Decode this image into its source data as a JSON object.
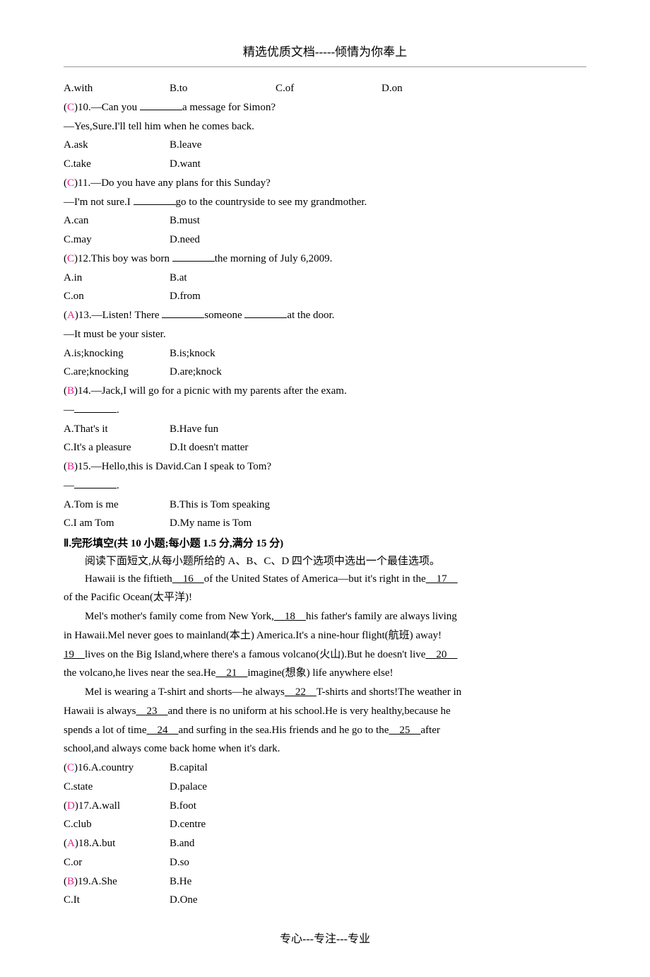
{
  "header": {
    "title": "精选优质文档-----倾情为你奉上"
  },
  "q9": {
    "a": "A.with",
    "b": "B.to",
    "c": "C.of",
    "d": "D.on"
  },
  "q10": {
    "answer": "C",
    "num": ")10.—Can you ",
    "text_after": "a message for Simon?",
    "line2": "—Yes,Sure.I'll tell him when he comes back.",
    "a": "A.ask",
    "b": "B.leave",
    "c": "C.take",
    "d": "D.want"
  },
  "q11": {
    "answer": "C",
    "num": ")11.—Do you have any plans for this Sunday?",
    "line2_before": "—I'm not sure.I ",
    "line2_after": "go to the countryside to see my grandmother.",
    "a": "A.can",
    "b": "B.must",
    "c": "C.may",
    "d": "D.need"
  },
  "q12": {
    "answer": "C",
    "num": ")12.This boy was born ",
    "text_after": "the morning of July 6,2009.",
    "a": "A.in",
    "b": "B.at",
    "c": "C.on",
    "d": "D.from"
  },
  "q13": {
    "answer": "A",
    "num": ")13.—Listen! There ",
    "mid": "someone ",
    "text_after": "at the door.",
    "line2": "—It must be your sister.",
    "a": "A.is;knocking",
    "b": "B.is;knock",
    "c": "C.are;knocking",
    "d": "D.are;knock"
  },
  "q14": {
    "answer": "B",
    "num": ")14.—Jack,I will go for a picnic with my parents after the exam.",
    "line2_before": "—",
    "line2_after": ".",
    "a": "A.That's it",
    "b": "B.Have fun",
    "c": "C.It's a pleasure",
    "d": "D.It doesn't matter"
  },
  "q15": {
    "answer": "B",
    "num": ")15.—Hello,this is David.Can I speak to Tom?",
    "line2_before": "—",
    "line2_after": ".",
    "a": "A.Tom is me",
    "b": "B.This is Tom speaking",
    "c": "C.I am Tom",
    "d": "D.My name is Tom"
  },
  "section2": {
    "title": "Ⅱ.完形填空(共 10 小题;每小题 1.5 分,满分 15 分)",
    "instruction": "阅读下面短文,从每小题所给的 A、B、C、D 四个选项中选出一个最佳选项。"
  },
  "passage": {
    "p1_a": "Hawaii is the fiftieth",
    "p1_n16": "　16　",
    "p1_b": "of the United States of America—but it's right in the",
    "p1_n17": "　17　",
    "p1_c": "of the Pacific Ocean(太平洋)!",
    "p2_a": "Mel's mother's family come from New York,",
    "p2_n18": "　18　",
    "p2_b": "his father's family are always living",
    "p2_c": "in Hawaii.Mel never goes to mainland(本土) America.It's a nine-hour flight(航班) away!",
    "p2_n19": "19　",
    "p2_d": "lives on the Big Island,where there's a famous volcano(火山).But he doesn't live",
    "p2_n20": "　20　",
    "p2_e": "the volcano,he lives near the sea.He",
    "p2_n21": "　21　",
    "p2_f": "imagine(想象) life anywhere else!",
    "p3_a": "Mel is wearing a T-shirt and shorts—he always",
    "p3_n22": "　22　",
    "p3_b": "T-shirts and shorts!The weather in",
    "p3_c": "Hawaii is always",
    "p3_n23": "　23　",
    "p3_d": "and there is no uniform at his school.He is very healthy,because he",
    "p3_e": "spends a lot of time",
    "p3_n24": "　24　",
    "p3_f": "and surfing in the sea.His friends and he go to the",
    "p3_n25": "　25　",
    "p3_g": "after",
    "p3_h": "school,and always come back home when it's dark."
  },
  "q16": {
    "answer": "C",
    "num": ")16.A.country",
    "b": "B.capital",
    "c": "C.state",
    "d": "D.palace"
  },
  "q17": {
    "answer": "D",
    "num": ")17.A.wall",
    "b": "B.foot",
    "c": "C.club",
    "d": "D.centre"
  },
  "q18": {
    "answer": "A",
    "num": ")18.A.but",
    "b": "B.and",
    "c": "C.or",
    "d": "D.so"
  },
  "q19": {
    "answer": "B",
    "num": ")19.A.She",
    "b": "B.He",
    "c": "C.It",
    "d": "D.One"
  },
  "footer": {
    "text": "专心---专注---专业"
  }
}
